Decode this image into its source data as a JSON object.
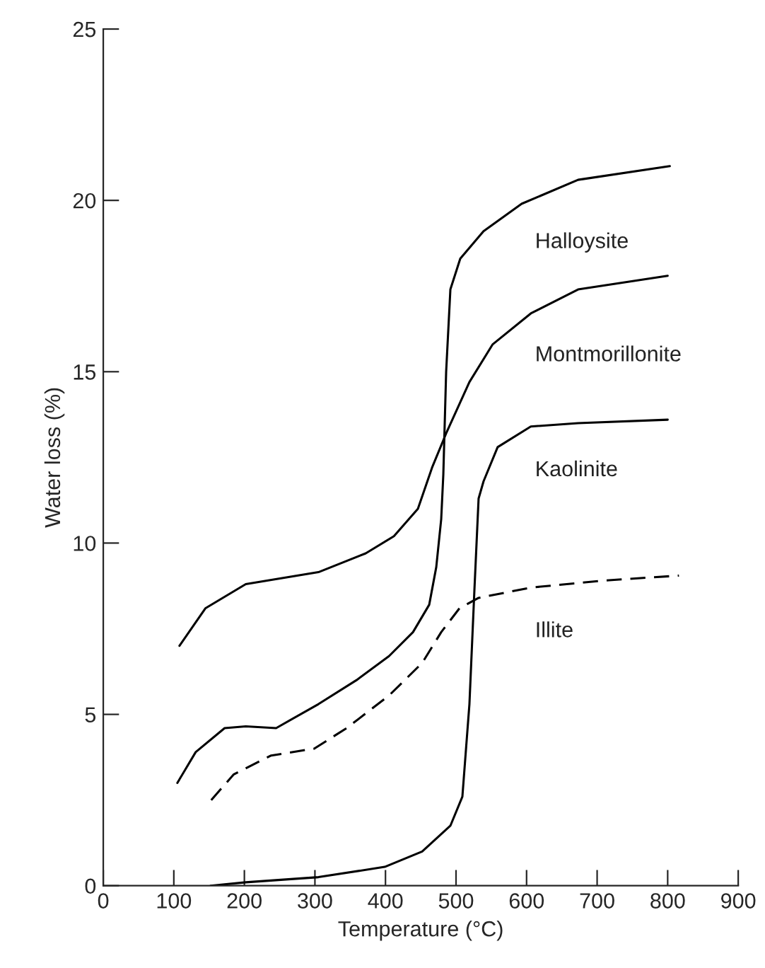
{
  "chart_data": {
    "type": "line",
    "xlabel": "Temperature (°C)",
    "ylabel": "Water loss (%)",
    "xlim": [
      0,
      900
    ],
    "xticks": [
      0,
      100,
      200,
      300,
      400,
      500,
      600,
      700,
      800,
      900
    ],
    "ylim": [
      0,
      25
    ],
    "yticks": [
      0,
      5,
      10,
      15,
      20,
      25
    ],
    "grid": false,
    "legend": false,
    "series": [
      {
        "name": "Halloysite",
        "color": "#000000",
        "line_style": "solid",
        "x": [
          105,
          131,
          172,
          202,
          245,
          305,
          359,
          405,
          439,
          462,
          472,
          479,
          482,
          486,
          492,
          506,
          539,
          593,
          673,
          803
        ],
        "values": [
          3.0,
          3.9,
          4.6,
          4.65,
          4.6,
          5.3,
          6.0,
          6.7,
          7.4,
          8.2,
          9.3,
          10.7,
          12.0,
          15.0,
          17.4,
          18.3,
          19.1,
          19.9,
          20.6,
          21.0
        ]
      },
      {
        "name": "Montmorillonite",
        "color": "#000000",
        "line_style": "solid",
        "x": [
          108,
          145,
          202,
          305,
          372,
          412,
          446,
          466,
          486,
          519,
          552,
          606,
          673,
          800
        ],
        "values": [
          7.0,
          8.1,
          8.8,
          9.15,
          9.7,
          10.2,
          11.0,
          12.2,
          13.2,
          14.7,
          15.8,
          16.7,
          17.4,
          17.8
        ]
      },
      {
        "name": "Kaolinite",
        "color": "#000000",
        "line_style": "solid",
        "x": [
          152,
          202,
          305,
          399,
          452,
          492,
          509,
          519,
          526,
          532,
          539,
          559,
          606,
          673,
          800
        ],
        "values": [
          0.0,
          0.1,
          0.25,
          0.55,
          1.0,
          1.75,
          2.6,
          5.3,
          8.6,
          11.3,
          11.8,
          12.8,
          13.4,
          13.5,
          13.6
        ]
      },
      {
        "name": "Illite",
        "color": "#000000",
        "line_style": "dashed",
        "x": [
          153,
          185,
          238,
          299,
          345,
          405,
          452,
          479,
          505,
          532,
          606,
          706,
          816
        ],
        "values": [
          2.5,
          3.25,
          3.8,
          4.0,
          4.6,
          5.55,
          6.5,
          7.4,
          8.1,
          8.4,
          8.7,
          8.9,
          9.05
        ]
      }
    ]
  }
}
